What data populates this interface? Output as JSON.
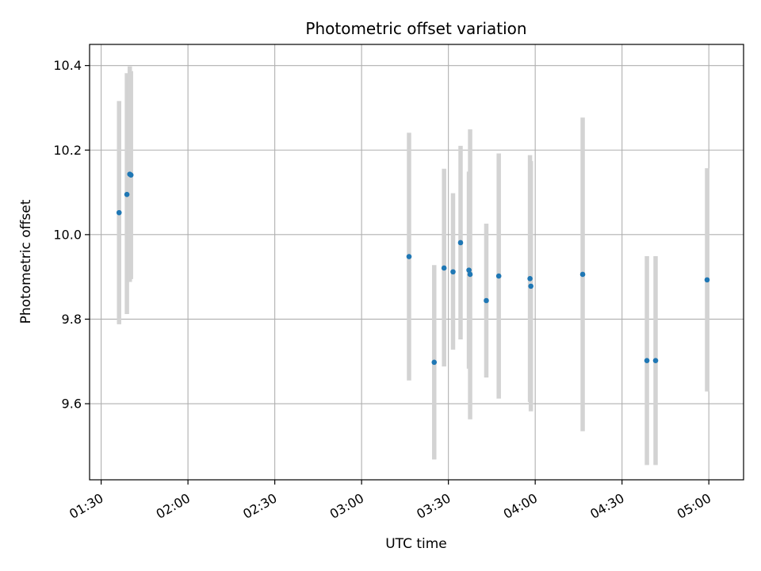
{
  "chart_data": {
    "type": "scatter",
    "title": "Photometric offset variation",
    "xlabel": "UTC time",
    "ylabel": "Photometric offset",
    "grid": true,
    "x_unit": "minutes since 00:00 UTC",
    "xlim": [
      86,
      312
    ],
    "ylim": [
      9.42,
      10.45
    ],
    "x_ticks": [
      {
        "value": 90,
        "label": "01:30"
      },
      {
        "value": 120,
        "label": "02:00"
      },
      {
        "value": 150,
        "label": "02:30"
      },
      {
        "value": 180,
        "label": "03:00"
      },
      {
        "value": 210,
        "label": "03:30"
      },
      {
        "value": 240,
        "label": "04:00"
      },
      {
        "value": 270,
        "label": "04:30"
      },
      {
        "value": 300,
        "label": "05:00"
      }
    ],
    "y_ticks": [
      {
        "value": 9.6,
        "label": "9.6"
      },
      {
        "value": 9.8,
        "label": "9.8"
      },
      {
        "value": 10.0,
        "label": "10.0"
      },
      {
        "value": 10.2,
        "label": "10.2"
      },
      {
        "value": 10.4,
        "label": "10.4"
      }
    ],
    "colors": {
      "point": "#1f77b4",
      "errorbar": "#d3d3d3",
      "grid": "#b0b0b0"
    },
    "points": [
      {
        "x": 96.2,
        "y": 10.052,
        "ylow": 9.788,
        "yhigh": 10.316
      },
      {
        "x": 98.9,
        "y": 10.095,
        "ylow": 9.812,
        "yhigh": 10.382
      },
      {
        "x": 99.9,
        "y": 10.143,
        "ylow": 9.888,
        "yhigh": 10.398
      },
      {
        "x": 100.3,
        "y": 10.141,
        "ylow": 9.895,
        "yhigh": 10.387
      },
      {
        "x": 196.4,
        "y": 9.948,
        "ylow": 9.655,
        "yhigh": 10.241
      },
      {
        "x": 205.1,
        "y": 9.698,
        "ylow": 9.468,
        "yhigh": 9.928
      },
      {
        "x": 208.5,
        "y": 9.921,
        "ylow": 9.688,
        "yhigh": 10.156
      },
      {
        "x": 211.6,
        "y": 9.912,
        "ylow": 9.728,
        "yhigh": 10.098
      },
      {
        "x": 214.2,
        "y": 9.981,
        "ylow": 9.752,
        "yhigh": 10.21
      },
      {
        "x": 217.1,
        "y": 9.916,
        "ylow": 9.683,
        "yhigh": 10.149
      },
      {
        "x": 217.5,
        "y": 9.906,
        "ylow": 9.563,
        "yhigh": 10.249
      },
      {
        "x": 223.1,
        "y": 9.844,
        "ylow": 9.662,
        "yhigh": 10.026
      },
      {
        "x": 227.4,
        "y": 9.902,
        "ylow": 9.612,
        "yhigh": 10.192
      },
      {
        "x": 238.2,
        "y": 9.896,
        "ylow": 9.604,
        "yhigh": 10.188
      },
      {
        "x": 238.5,
        "y": 9.878,
        "ylow": 9.582,
        "yhigh": 10.174
      },
      {
        "x": 256.4,
        "y": 9.906,
        "ylow": 9.535,
        "yhigh": 10.277
      },
      {
        "x": 278.6,
        "y": 9.702,
        "ylow": 9.455,
        "yhigh": 9.949
      },
      {
        "x": 281.6,
        "y": 9.702,
        "ylow": 9.455,
        "yhigh": 9.949
      },
      {
        "x": 299.4,
        "y": 9.893,
        "ylow": 9.629,
        "yhigh": 10.157
      }
    ]
  }
}
